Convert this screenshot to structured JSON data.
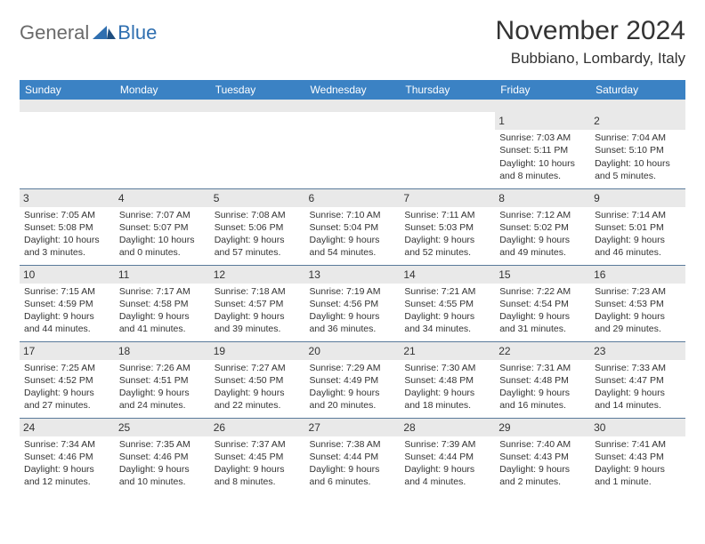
{
  "logo": {
    "general": "General",
    "blue": "Blue"
  },
  "title": "November 2024",
  "location": "Bubbiano, Lombardy, Italy",
  "colors": {
    "header_bg": "#3b82c4",
    "header_text": "#ffffff",
    "daynum_bg": "#e9e9e9",
    "border": "#5a7a9a",
    "logo_gray": "#6a6a6a",
    "logo_blue": "#2f6fb0"
  },
  "weekdays": [
    "Sunday",
    "Monday",
    "Tuesday",
    "Wednesday",
    "Thursday",
    "Friday",
    "Saturday"
  ],
  "weeks": [
    [
      null,
      null,
      null,
      null,
      null,
      {
        "n": "1",
        "sr": "Sunrise: 7:03 AM",
        "ss": "Sunset: 5:11 PM",
        "dl": "Daylight: 10 hours and 8 minutes."
      },
      {
        "n": "2",
        "sr": "Sunrise: 7:04 AM",
        "ss": "Sunset: 5:10 PM",
        "dl": "Daylight: 10 hours and 5 minutes."
      }
    ],
    [
      {
        "n": "3",
        "sr": "Sunrise: 7:05 AM",
        "ss": "Sunset: 5:08 PM",
        "dl": "Daylight: 10 hours and 3 minutes."
      },
      {
        "n": "4",
        "sr": "Sunrise: 7:07 AM",
        "ss": "Sunset: 5:07 PM",
        "dl": "Daylight: 10 hours and 0 minutes."
      },
      {
        "n": "5",
        "sr": "Sunrise: 7:08 AM",
        "ss": "Sunset: 5:06 PM",
        "dl": "Daylight: 9 hours and 57 minutes."
      },
      {
        "n": "6",
        "sr": "Sunrise: 7:10 AM",
        "ss": "Sunset: 5:04 PM",
        "dl": "Daylight: 9 hours and 54 minutes."
      },
      {
        "n": "7",
        "sr": "Sunrise: 7:11 AM",
        "ss": "Sunset: 5:03 PM",
        "dl": "Daylight: 9 hours and 52 minutes."
      },
      {
        "n": "8",
        "sr": "Sunrise: 7:12 AM",
        "ss": "Sunset: 5:02 PM",
        "dl": "Daylight: 9 hours and 49 minutes."
      },
      {
        "n": "9",
        "sr": "Sunrise: 7:14 AM",
        "ss": "Sunset: 5:01 PM",
        "dl": "Daylight: 9 hours and 46 minutes."
      }
    ],
    [
      {
        "n": "10",
        "sr": "Sunrise: 7:15 AM",
        "ss": "Sunset: 4:59 PM",
        "dl": "Daylight: 9 hours and 44 minutes."
      },
      {
        "n": "11",
        "sr": "Sunrise: 7:17 AM",
        "ss": "Sunset: 4:58 PM",
        "dl": "Daylight: 9 hours and 41 minutes."
      },
      {
        "n": "12",
        "sr": "Sunrise: 7:18 AM",
        "ss": "Sunset: 4:57 PM",
        "dl": "Daylight: 9 hours and 39 minutes."
      },
      {
        "n": "13",
        "sr": "Sunrise: 7:19 AM",
        "ss": "Sunset: 4:56 PM",
        "dl": "Daylight: 9 hours and 36 minutes."
      },
      {
        "n": "14",
        "sr": "Sunrise: 7:21 AM",
        "ss": "Sunset: 4:55 PM",
        "dl": "Daylight: 9 hours and 34 minutes."
      },
      {
        "n": "15",
        "sr": "Sunrise: 7:22 AM",
        "ss": "Sunset: 4:54 PM",
        "dl": "Daylight: 9 hours and 31 minutes."
      },
      {
        "n": "16",
        "sr": "Sunrise: 7:23 AM",
        "ss": "Sunset: 4:53 PM",
        "dl": "Daylight: 9 hours and 29 minutes."
      }
    ],
    [
      {
        "n": "17",
        "sr": "Sunrise: 7:25 AM",
        "ss": "Sunset: 4:52 PM",
        "dl": "Daylight: 9 hours and 27 minutes."
      },
      {
        "n": "18",
        "sr": "Sunrise: 7:26 AM",
        "ss": "Sunset: 4:51 PM",
        "dl": "Daylight: 9 hours and 24 minutes."
      },
      {
        "n": "19",
        "sr": "Sunrise: 7:27 AM",
        "ss": "Sunset: 4:50 PM",
        "dl": "Daylight: 9 hours and 22 minutes."
      },
      {
        "n": "20",
        "sr": "Sunrise: 7:29 AM",
        "ss": "Sunset: 4:49 PM",
        "dl": "Daylight: 9 hours and 20 minutes."
      },
      {
        "n": "21",
        "sr": "Sunrise: 7:30 AM",
        "ss": "Sunset: 4:48 PM",
        "dl": "Daylight: 9 hours and 18 minutes."
      },
      {
        "n": "22",
        "sr": "Sunrise: 7:31 AM",
        "ss": "Sunset: 4:48 PM",
        "dl": "Daylight: 9 hours and 16 minutes."
      },
      {
        "n": "23",
        "sr": "Sunrise: 7:33 AM",
        "ss": "Sunset: 4:47 PM",
        "dl": "Daylight: 9 hours and 14 minutes."
      }
    ],
    [
      {
        "n": "24",
        "sr": "Sunrise: 7:34 AM",
        "ss": "Sunset: 4:46 PM",
        "dl": "Daylight: 9 hours and 12 minutes."
      },
      {
        "n": "25",
        "sr": "Sunrise: 7:35 AM",
        "ss": "Sunset: 4:46 PM",
        "dl": "Daylight: 9 hours and 10 minutes."
      },
      {
        "n": "26",
        "sr": "Sunrise: 7:37 AM",
        "ss": "Sunset: 4:45 PM",
        "dl": "Daylight: 9 hours and 8 minutes."
      },
      {
        "n": "27",
        "sr": "Sunrise: 7:38 AM",
        "ss": "Sunset: 4:44 PM",
        "dl": "Daylight: 9 hours and 6 minutes."
      },
      {
        "n": "28",
        "sr": "Sunrise: 7:39 AM",
        "ss": "Sunset: 4:44 PM",
        "dl": "Daylight: 9 hours and 4 minutes."
      },
      {
        "n": "29",
        "sr": "Sunrise: 7:40 AM",
        "ss": "Sunset: 4:43 PM",
        "dl": "Daylight: 9 hours and 2 minutes."
      },
      {
        "n": "30",
        "sr": "Sunrise: 7:41 AM",
        "ss": "Sunset: 4:43 PM",
        "dl": "Daylight: 9 hours and 1 minute."
      }
    ]
  ]
}
